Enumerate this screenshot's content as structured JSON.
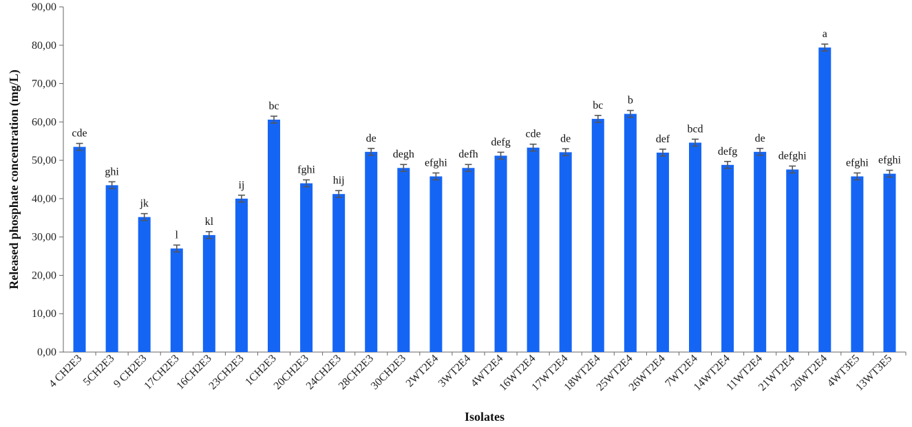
{
  "chart_data": {
    "type": "bar",
    "xlabel": "Isolates",
    "ylabel": "Released phosphate concentration (mg/L)",
    "ylim": [
      0,
      90
    ],
    "yticks": [
      "0,00",
      "10,00",
      "20,00",
      "30,00",
      "40,00",
      "50,00",
      "60,00",
      "70,00",
      "80,00",
      "90,00"
    ],
    "categories": [
      "4 CH2E3",
      "5CH2E3",
      "9 CH2E3",
      "17CH2E3",
      "16CH2E3",
      "23CH2E3",
      "1CH2E3",
      "20CH2E3",
      "24CH2E3",
      "28CH2E3",
      "30CH2E3",
      "2WT2E4",
      "3WT2E4",
      "4WT2E4",
      "16WT2E4",
      "17WT2E4",
      "18WT2E4",
      "25WT2E4",
      "26WT2E4",
      "7WT2E4",
      "14WT2E4",
      "11WT2E4",
      "21WT2E4",
      "20WT2E4",
      "4WT3E5",
      "13WT3E5"
    ],
    "values": [
      53.5,
      43.5,
      35.2,
      27.0,
      30.5,
      40.0,
      60.6,
      44.0,
      41.2,
      52.2,
      48.0,
      45.8,
      48.0,
      51.2,
      53.3,
      52.1,
      60.8,
      62.1,
      52.0,
      54.6,
      48.8,
      52.2,
      47.6,
      79.4,
      45.8,
      46.5
    ],
    "errors": [
      0.9,
      0.9,
      0.9,
      0.9,
      0.9,
      0.9,
      0.9,
      0.9,
      0.9,
      0.9,
      0.9,
      0.9,
      0.9,
      0.9,
      0.9,
      0.9,
      0.9,
      0.9,
      0.9,
      0.9,
      0.9,
      0.9,
      0.9,
      0.9,
      0.9,
      0.9
    ],
    "significance": [
      "cde",
      "ghi",
      "jk",
      "l",
      "kl",
      "ij",
      "bc",
      "fghi",
      "hij",
      "de",
      "degh",
      "efghi",
      "defh",
      "defg",
      "cde",
      "de",
      "bc",
      "b",
      "def",
      "bcd",
      "defg",
      "de",
      "defghi",
      "a",
      "efghi",
      "efghi"
    ],
    "bar_color": "#1565F5",
    "error_color": "#555555",
    "grid": false,
    "legend": "none"
  }
}
